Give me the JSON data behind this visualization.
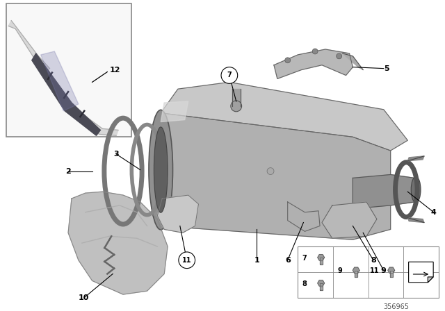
{
  "background_color": "#ffffff",
  "part_number": "356965",
  "fig_w": 6.4,
  "fig_h": 4.48,
  "dpi": 100
}
